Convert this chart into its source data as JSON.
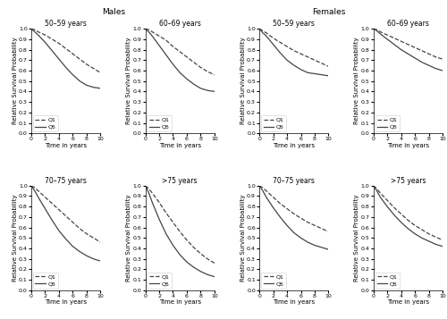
{
  "col_titles_left": "Males",
  "col_titles_right": "Females",
  "subplot_titles": [
    [
      "50–59 years",
      "60–69 years",
      "50–59 years",
      "60–69 years"
    ],
    [
      "70–75 years",
      ">75 years",
      "70–75 years",
      ">75 years"
    ]
  ],
  "ylabel": "Relative Survival Probability",
  "xlabel": "Time in years",
  "ylim": [
    0.0,
    1.0
  ],
  "xlim": [
    0,
    10
  ],
  "yticks": [
    0.0,
    0.1,
    0.2,
    0.3,
    0.4,
    0.5,
    0.6,
    0.7,
    0.8,
    0.9,
    1.0
  ],
  "xticks": [
    0,
    2,
    4,
    6,
    8,
    10
  ],
  "q1_color": "#444444",
  "q5_color": "#444444",
  "q1_linestyle": "dashed",
  "q5_linestyle": "solid",
  "q1_linewidth": 0.9,
  "q5_linewidth": 0.9,
  "curves": {
    "males_50_59": {
      "q1": {
        "x": [
          0,
          0.5,
          1,
          2,
          3,
          4,
          5,
          6,
          7,
          8,
          9,
          10
        ],
        "y": [
          1.0,
          0.99,
          0.97,
          0.94,
          0.9,
          0.86,
          0.81,
          0.76,
          0.71,
          0.66,
          0.62,
          0.58
        ]
      },
      "q5": {
        "x": [
          0,
          0.5,
          1,
          2,
          3,
          4,
          5,
          6,
          7,
          8,
          9,
          10
        ],
        "y": [
          1.0,
          0.97,
          0.94,
          0.87,
          0.79,
          0.71,
          0.63,
          0.56,
          0.5,
          0.46,
          0.44,
          0.43
        ]
      }
    },
    "males_60_69": {
      "q1": {
        "x": [
          0,
          0.5,
          1,
          2,
          3,
          4,
          5,
          6,
          7,
          8,
          9,
          10
        ],
        "y": [
          1.0,
          0.99,
          0.97,
          0.93,
          0.89,
          0.83,
          0.78,
          0.73,
          0.68,
          0.63,
          0.59,
          0.56
        ]
      },
      "q5": {
        "x": [
          0,
          0.5,
          1,
          2,
          3,
          4,
          5,
          6,
          7,
          8,
          9,
          10
        ],
        "y": [
          1.0,
          0.97,
          0.93,
          0.84,
          0.75,
          0.66,
          0.58,
          0.52,
          0.47,
          0.43,
          0.41,
          0.4
        ]
      }
    },
    "females_50_59": {
      "q1": {
        "x": [
          0,
          0.5,
          1,
          2,
          3,
          4,
          5,
          6,
          7,
          8,
          9,
          10
        ],
        "y": [
          1.0,
          0.98,
          0.96,
          0.91,
          0.87,
          0.83,
          0.79,
          0.76,
          0.73,
          0.7,
          0.67,
          0.64
        ]
      },
      "q5": {
        "x": [
          0,
          0.5,
          1,
          2,
          3,
          4,
          5,
          6,
          7,
          8,
          9,
          10
        ],
        "y": [
          1.0,
          0.96,
          0.93,
          0.85,
          0.77,
          0.7,
          0.65,
          0.61,
          0.58,
          0.57,
          0.56,
          0.55
        ]
      }
    },
    "females_60_69": {
      "q1": {
        "x": [
          0,
          0.5,
          1,
          2,
          3,
          4,
          5,
          6,
          7,
          8,
          9,
          10
        ],
        "y": [
          1.0,
          0.99,
          0.97,
          0.94,
          0.91,
          0.88,
          0.85,
          0.82,
          0.79,
          0.76,
          0.73,
          0.71
        ]
      },
      "q5": {
        "x": [
          0,
          0.5,
          1,
          2,
          3,
          4,
          5,
          6,
          7,
          8,
          9,
          10
        ],
        "y": [
          1.0,
          0.98,
          0.95,
          0.9,
          0.85,
          0.8,
          0.76,
          0.72,
          0.68,
          0.65,
          0.62,
          0.6
        ]
      }
    },
    "males_70_75": {
      "q1": {
        "x": [
          0,
          0.5,
          1,
          2,
          3,
          4,
          5,
          6,
          7,
          8,
          9,
          10
        ],
        "y": [
          1.0,
          0.98,
          0.95,
          0.89,
          0.83,
          0.77,
          0.71,
          0.65,
          0.59,
          0.54,
          0.5,
          0.46
        ]
      },
      "q5": {
        "x": [
          0,
          0.5,
          1,
          2,
          3,
          4,
          5,
          6,
          7,
          8,
          9,
          10
        ],
        "y": [
          1.0,
          0.95,
          0.89,
          0.78,
          0.67,
          0.57,
          0.49,
          0.42,
          0.37,
          0.33,
          0.3,
          0.28
        ]
      }
    },
    "males_gt75": {
      "q1": {
        "x": [
          0,
          0.5,
          1,
          2,
          3,
          4,
          5,
          6,
          7,
          8,
          9,
          10
        ],
        "y": [
          1.0,
          0.97,
          0.93,
          0.84,
          0.74,
          0.65,
          0.56,
          0.48,
          0.41,
          0.35,
          0.3,
          0.26
        ]
      },
      "q5": {
        "x": [
          0,
          0.5,
          1,
          2,
          3,
          4,
          5,
          6,
          7,
          8,
          9,
          10
        ],
        "y": [
          1.0,
          0.93,
          0.84,
          0.68,
          0.54,
          0.43,
          0.34,
          0.27,
          0.22,
          0.18,
          0.15,
          0.13
        ]
      }
    },
    "females_70_75": {
      "q1": {
        "x": [
          0,
          0.5,
          1,
          2,
          3,
          4,
          5,
          6,
          7,
          8,
          9,
          10
        ],
        "y": [
          1.0,
          0.98,
          0.95,
          0.89,
          0.83,
          0.78,
          0.73,
          0.69,
          0.65,
          0.62,
          0.59,
          0.56
        ]
      },
      "q5": {
        "x": [
          0,
          0.5,
          1,
          2,
          3,
          4,
          5,
          6,
          7,
          8,
          9,
          10
        ],
        "y": [
          1.0,
          0.95,
          0.89,
          0.79,
          0.7,
          0.62,
          0.55,
          0.5,
          0.46,
          0.43,
          0.41,
          0.39
        ]
      }
    },
    "females_gt75": {
      "q1": {
        "x": [
          0,
          0.5,
          1,
          2,
          3,
          4,
          5,
          6,
          7,
          8,
          9,
          10
        ],
        "y": [
          1.0,
          0.97,
          0.93,
          0.86,
          0.79,
          0.73,
          0.67,
          0.62,
          0.58,
          0.54,
          0.51,
          0.48
        ]
      },
      "q5": {
        "x": [
          0,
          0.5,
          1,
          2,
          3,
          4,
          5,
          6,
          7,
          8,
          9,
          10
        ],
        "y": [
          1.0,
          0.95,
          0.89,
          0.8,
          0.72,
          0.65,
          0.59,
          0.54,
          0.5,
          0.47,
          0.44,
          0.42
        ]
      }
    }
  },
  "legend_loc": "lower left",
  "legend_fontsize": 4.5,
  "tick_fontsize": 4.5,
  "label_fontsize": 5.0,
  "title_fontsize": 5.5,
  "col_title_fontsize": 6.5
}
